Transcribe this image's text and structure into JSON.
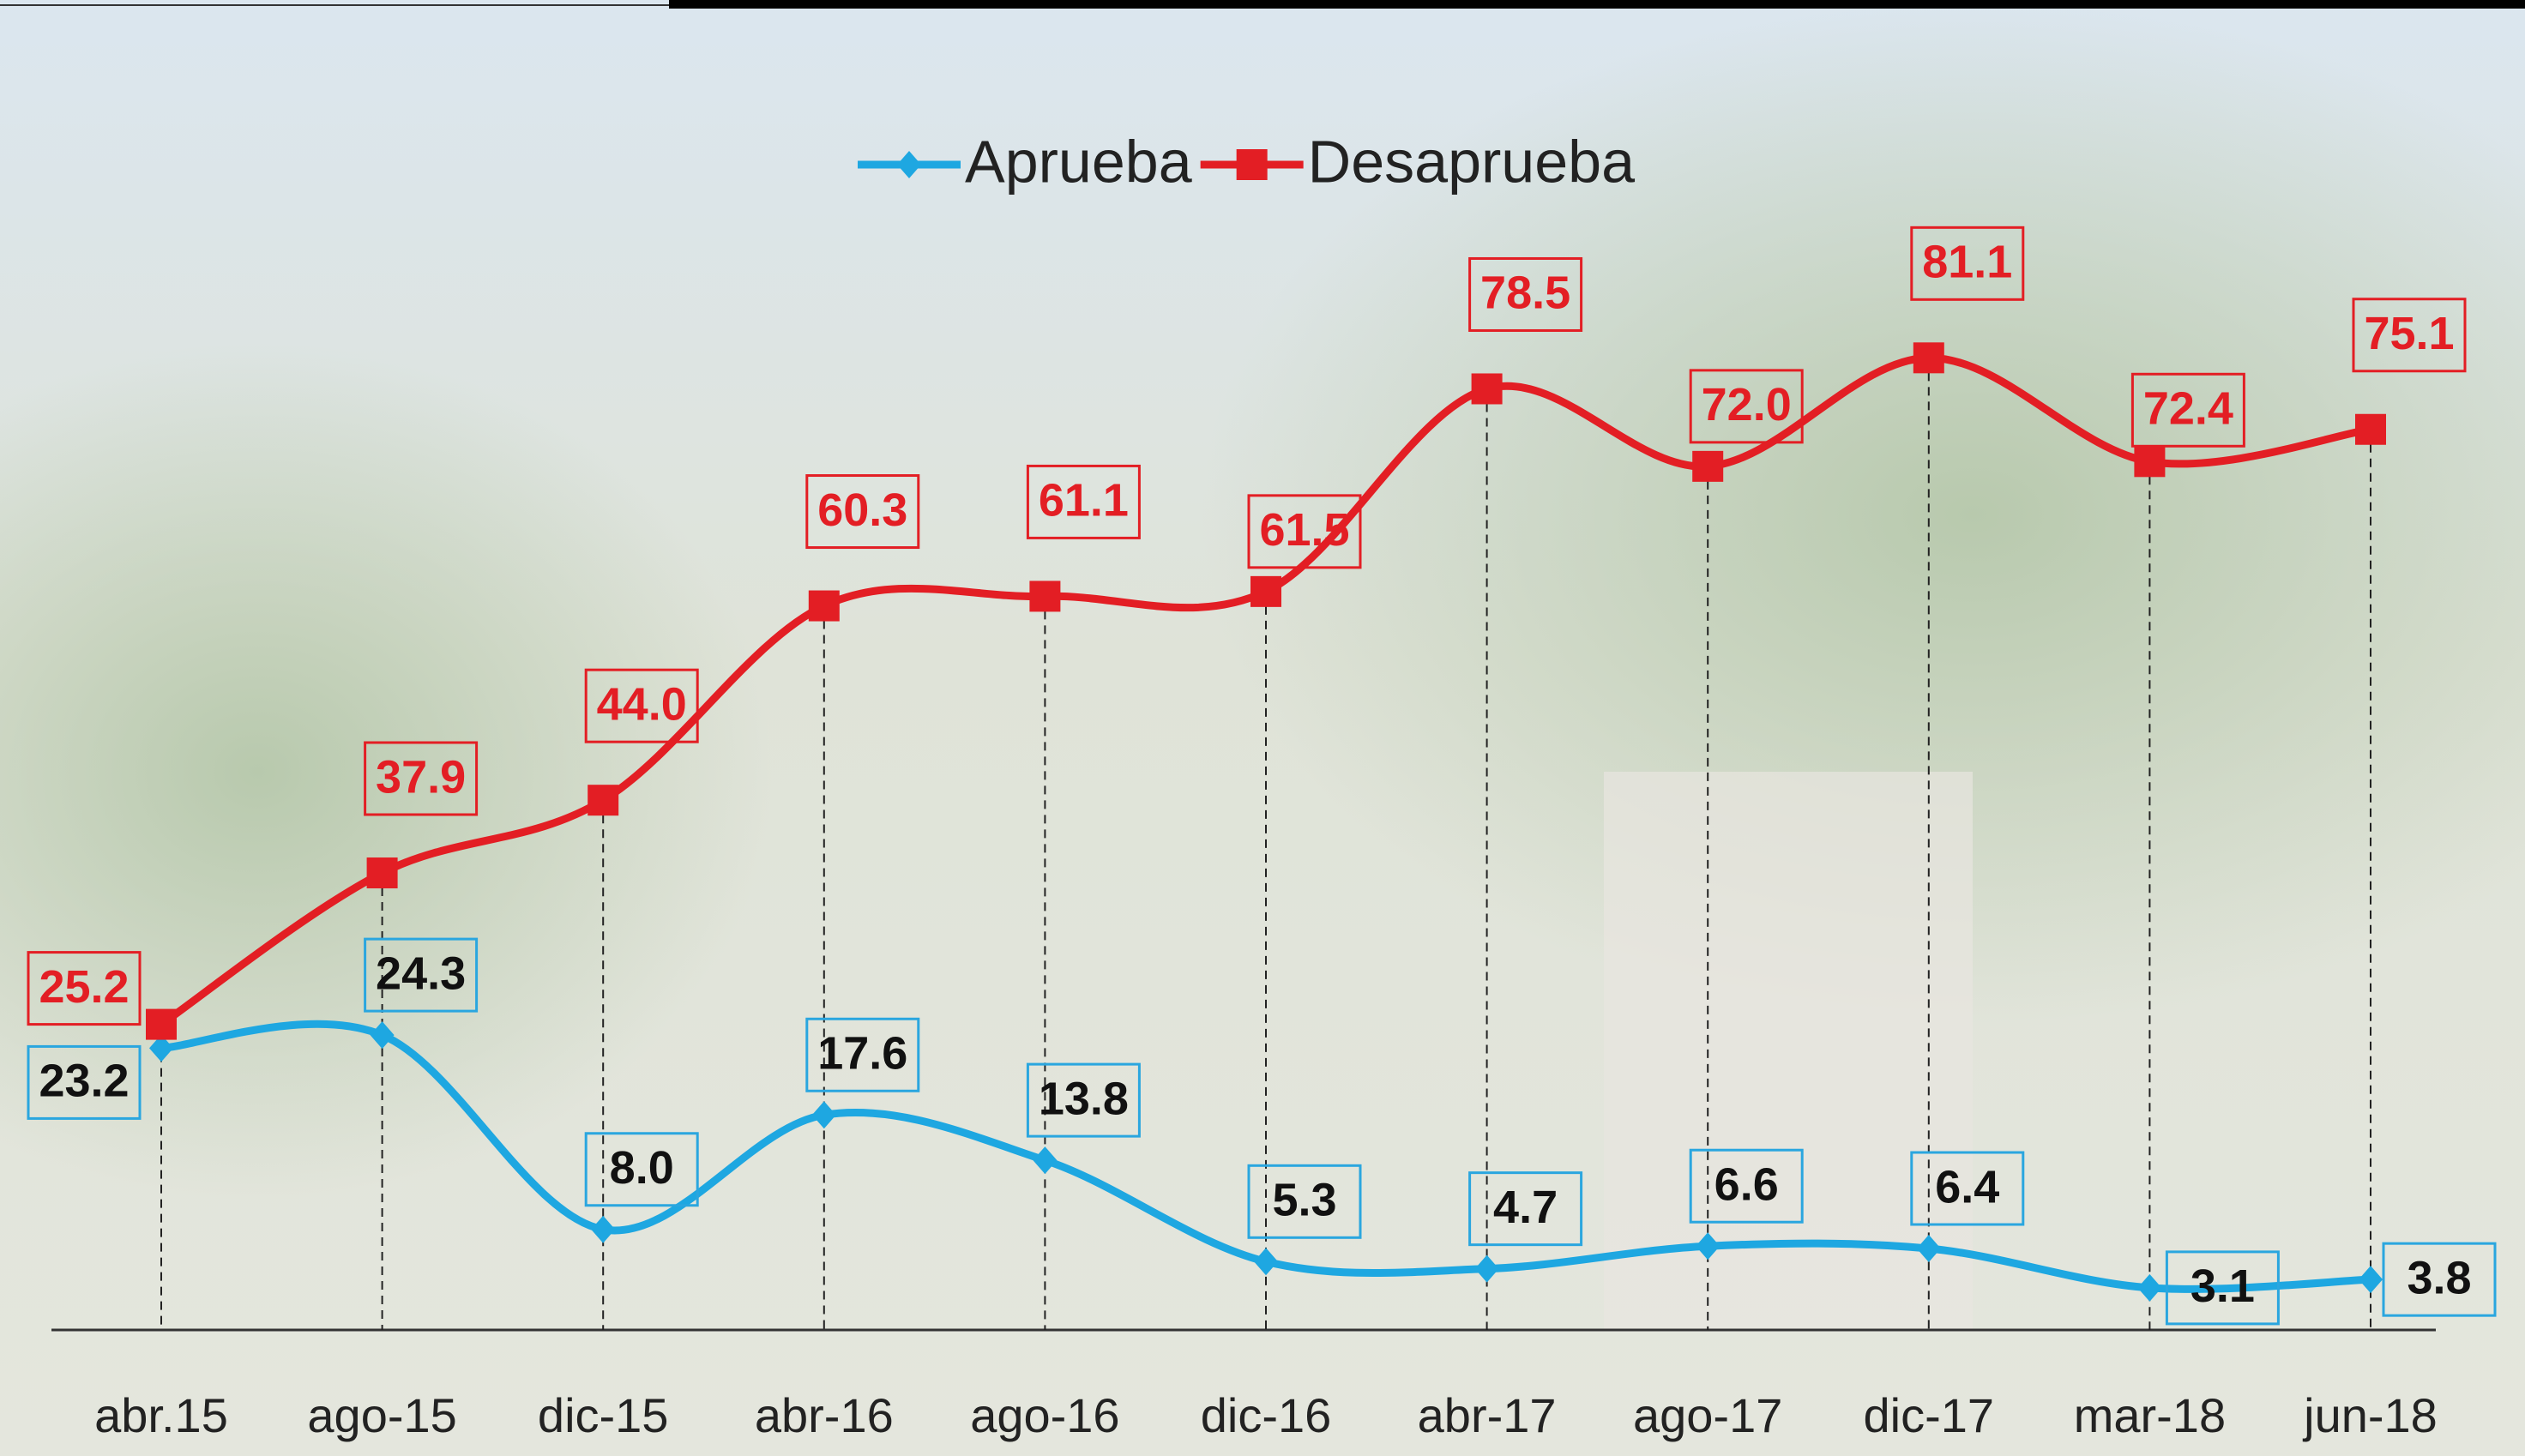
{
  "chart_data": {
    "type": "line",
    "categories": [
      "abr.15",
      "ago-15",
      "dic-15",
      "abr-16",
      "ago-16",
      "dic-16",
      "abr-17",
      "ago-17",
      "dic-17",
      "mar-18",
      "jun-18"
    ],
    "series": [
      {
        "name": "Aprueba",
        "color": "#1ea7e1",
        "values": [
          23.2,
          24.3,
          8.0,
          17.6,
          13.8,
          5.3,
          4.7,
          6.6,
          6.4,
          3.1,
          3.8
        ],
        "value_labels": [
          "23.2",
          "24.3",
          "8.0",
          "17.6",
          "13.8",
          "5.3",
          "4.7",
          "6.6",
          "6.4",
          "3.1",
          "3.8"
        ]
      },
      {
        "name": "Desaprueba",
        "color": "#e31e24",
        "values": [
          25.2,
          37.9,
          44.0,
          60.3,
          61.1,
          61.5,
          78.5,
          72.0,
          81.1,
          72.4,
          75.1
        ],
        "value_labels": [
          "25.2",
          "37.9",
          "44.0",
          "60.3",
          "61.1",
          "61.5",
          "78.5",
          "72.0",
          "81.1",
          "72.4",
          "75.1"
        ]
      }
    ],
    "ylim": [
      0,
      105
    ],
    "legend": "top"
  }
}
